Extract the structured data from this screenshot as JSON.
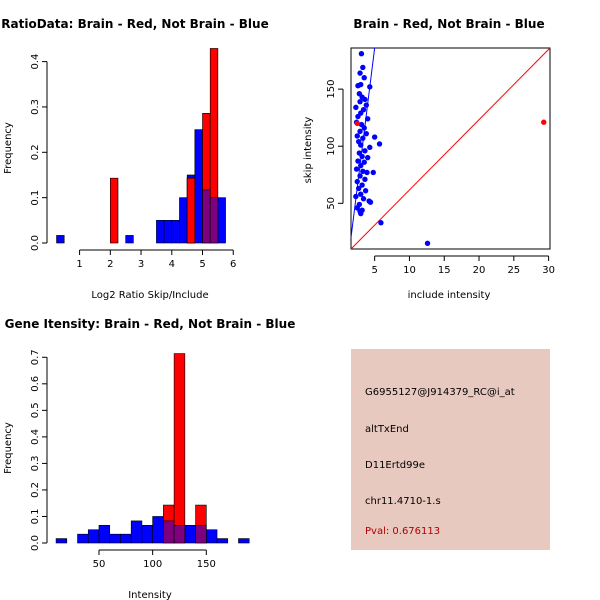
{
  "colors": {
    "red": "#ff0000",
    "blue": "#0000ff",
    "overlap": "#7f007f",
    "info_background": "#e8c9c0",
    "pval_text": "#b00000"
  },
  "chart_data": [
    {
      "type": "bar",
      "subtype": "overlaid-histogram",
      "title": "RatioData: Brain - Red, Not Brain - Blue",
      "xlabel": "Log2 Ratio Skip/Include",
      "ylabel": "Frequency",
      "xlim": [
        0.2,
        6.35
      ],
      "ylim": [
        0,
        0.43
      ],
      "xticks": [
        1,
        2,
        3,
        4,
        5,
        6
      ],
      "yticks": [
        0.0,
        0.1,
        0.2,
        0.3,
        0.4
      ],
      "ytick_labels": [
        "0.0",
        "0.1",
        "0.2",
        "0.3",
        "0.4"
      ],
      "bin_width": 0.25,
      "series": [
        {
          "name": "Not Brain",
          "color": "blue",
          "bins": [
            {
              "x0": 0.25,
              "value": 0.0167
            },
            {
              "x0": 2.5,
              "value": 0.0167
            },
            {
              "x0": 3.5,
              "value": 0.05
            },
            {
              "x0": 3.75,
              "value": 0.05
            },
            {
              "x0": 4.0,
              "value": 0.05
            },
            {
              "x0": 4.25,
              "value": 0.1
            },
            {
              "x0": 4.5,
              "value": 0.15
            },
            {
              "x0": 4.75,
              "value": 0.25
            },
            {
              "x0": 5.0,
              "value": 0.117
            },
            {
              "x0": 5.25,
              "value": 0.1
            },
            {
              "x0": 5.5,
              "value": 0.1
            }
          ]
        },
        {
          "name": "Brain",
          "color": "red",
          "bins": [
            {
              "x0": 2.0,
              "value": 0.143
            },
            {
              "x0": 4.5,
              "value": 0.143
            },
            {
              "x0": 5.0,
              "value": 0.286
            },
            {
              "x0": 5.25,
              "value": 0.429
            }
          ]
        }
      ]
    },
    {
      "type": "scatter",
      "title": "Brain - Red, Not Brain - Blue",
      "xlabel": "include intensity",
      "ylabel": "skip intensity",
      "xlim": [
        1.6,
        30.2
      ],
      "ylim": [
        10,
        186
      ],
      "xticks": [
        5,
        10,
        15,
        20,
        25,
        30
      ],
      "yticks": [
        50,
        100,
        150
      ],
      "lines": [
        {
          "name": "fit-line",
          "color": "blue",
          "points": [
            [
              1.6,
              20
            ],
            [
              5.0,
              186
            ]
          ]
        },
        {
          "name": "identity-line",
          "color": "red",
          "points": [
            [
              1.6,
              10
            ],
            [
              30.2,
              186
            ]
          ]
        }
      ],
      "series": [
        {
          "name": "Not Brain",
          "color": "blue",
          "points": [
            [
              3.1,
              181
            ],
            [
              3.3,
              169
            ],
            [
              2.9,
              164
            ],
            [
              3.5,
              160
            ],
            [
              2.6,
              153
            ],
            [
              3.0,
              154
            ],
            [
              4.3,
              152
            ],
            [
              2.8,
              146
            ],
            [
              3.2,
              143
            ],
            [
              3.6,
              141
            ],
            [
              2.9,
              139
            ],
            [
              3.8,
              136
            ],
            [
              2.3,
              134
            ],
            [
              3.4,
              132
            ],
            [
              3.0,
              129
            ],
            [
              2.6,
              126
            ],
            [
              4.0,
              124
            ],
            [
              2.4,
              121
            ],
            [
              3.1,
              119
            ],
            [
              3.5,
              116
            ],
            [
              2.9,
              113
            ],
            [
              3.8,
              111
            ],
            [
              2.5,
              109
            ],
            [
              3.3,
              107
            ],
            [
              5.0,
              108
            ],
            [
              2.7,
              104
            ],
            [
              3.0,
              101
            ],
            [
              5.7,
              102
            ],
            [
              4.3,
              99
            ],
            [
              3.6,
              96
            ],
            [
              2.8,
              94
            ],
            [
              3.2,
              91
            ],
            [
              4.0,
              90
            ],
            [
              2.6,
              87
            ],
            [
              3.5,
              86
            ],
            [
              3.0,
              83
            ],
            [
              2.4,
              80
            ],
            [
              3.3,
              78
            ],
            [
              3.9,
              77
            ],
            [
              4.8,
              77
            ],
            [
              2.9,
              74
            ],
            [
              3.6,
              71
            ],
            [
              2.5,
              69
            ],
            [
              3.2,
              66
            ],
            [
              2.7,
              63
            ],
            [
              3.7,
              61
            ],
            [
              3.0,
              58
            ],
            [
              2.3,
              56
            ],
            [
              3.4,
              54
            ],
            [
              4.2,
              52
            ],
            [
              4.4,
              51
            ],
            [
              2.8,
              49
            ],
            [
              2.5,
              46
            ],
            [
              3.2,
              44
            ],
            [
              2.9,
              43
            ],
            [
              3.0,
              41
            ],
            [
              5.9,
              33
            ],
            [
              12.6,
              15
            ]
          ]
        },
        {
          "name": "Brain",
          "color": "red",
          "points": [
            [
              2.5,
              120
            ],
            [
              29.3,
              121
            ]
          ]
        }
      ]
    },
    {
      "type": "bar",
      "subtype": "overlaid-histogram",
      "title": "Gene Itensity: Brain - Red, Not Brain - Blue",
      "xlabel": "Intensity",
      "ylabel": "Frequency",
      "xlim": [
        9,
        187
      ],
      "ylim": [
        0,
        0.735
      ],
      "xticks": [
        50,
        100,
        150
      ],
      "yticks": [
        0.0,
        0.1,
        0.2,
        0.3,
        0.4,
        0.5,
        0.6,
        0.7
      ],
      "ytick_labels": [
        "0.0",
        "0.1",
        "0.2",
        "0.3",
        "0.4",
        "0.5",
        "0.6",
        "0.7"
      ],
      "bin_width": 10,
      "series": [
        {
          "name": "Not Brain",
          "color": "blue",
          "bins": [
            {
              "x0": 10,
              "value": 0.0167
            },
            {
              "x0": 30,
              "value": 0.0333
            },
            {
              "x0": 40,
              "value": 0.05
            },
            {
              "x0": 50,
              "value": 0.0667
            },
            {
              "x0": 60,
              "value": 0.0333
            },
            {
              "x0": 70,
              "value": 0.0333
            },
            {
              "x0": 80,
              "value": 0.0833
            },
            {
              "x0": 90,
              "value": 0.0667
            },
            {
              "x0": 100,
              "value": 0.1
            },
            {
              "x0": 110,
              "value": 0.0833
            },
            {
              "x0": 120,
              "value": 0.0667
            },
            {
              "x0": 130,
              "value": 0.0667
            },
            {
              "x0": 140,
              "value": 0.0667
            },
            {
              "x0": 150,
              "value": 0.05
            },
            {
              "x0": 160,
              "value": 0.0167
            },
            {
              "x0": 180,
              "value": 0.0167
            }
          ]
        },
        {
          "name": "Brain",
          "color": "red",
          "bins": [
            {
              "x0": 110,
              "value": 0.143
            },
            {
              "x0": 120,
              "value": 0.714
            },
            {
              "x0": 140,
              "value": 0.143
            }
          ]
        }
      ]
    }
  ],
  "info_panel": {
    "probe_id": "G6955127@J914379_RC@i_at",
    "event_type": "altTxEnd",
    "gene": "D11Ertd99e",
    "location": "chr11.4710-1.s",
    "pval": "Pval: 0.676113"
  }
}
